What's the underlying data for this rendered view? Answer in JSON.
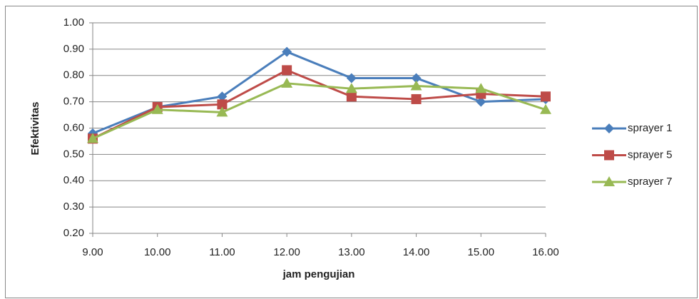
{
  "chart_data": {
    "type": "line",
    "x_label": "jam pengujian",
    "y_label": "Efektivitas",
    "categories": [
      "9.00",
      "10.00",
      "11.00",
      "12.00",
      "13.00",
      "14.00",
      "15.00",
      "16.00"
    ],
    "series": [
      {
        "name": "sprayer 1",
        "color": "#4a7ebb",
        "marker": "diamond",
        "values": [
          0.58,
          0.68,
          0.72,
          0.89,
          0.79,
          0.79,
          0.7,
          0.71
        ]
      },
      {
        "name": "sprayer 5",
        "color": "#be4b48",
        "marker": "square",
        "values": [
          0.56,
          0.68,
          0.69,
          0.82,
          0.72,
          0.71,
          0.73,
          0.72
        ]
      },
      {
        "name": "sprayer 7",
        "color": "#98b954",
        "marker": "triangle",
        "values": [
          0.56,
          0.67,
          0.66,
          0.77,
          0.75,
          0.76,
          0.75,
          0.67
        ]
      }
    ],
    "ylim": [
      0.2,
      1.0
    ],
    "yticks": [
      {
        "value": 0.2,
        "label": "0.20"
      },
      {
        "value": 0.3,
        "label": "0.30"
      },
      {
        "value": 0.4,
        "label": "0.40"
      },
      {
        "value": 0.5,
        "label": "0.50"
      },
      {
        "value": 0.6,
        "label": "0.60"
      },
      {
        "value": 0.7,
        "label": "0.70"
      },
      {
        "value": 0.8,
        "label": "0.80"
      },
      {
        "value": 0.9,
        "label": "0.90"
      },
      {
        "value": 1.0,
        "label": "1.00"
      }
    ],
    "grid": true,
    "legend": "right"
  }
}
